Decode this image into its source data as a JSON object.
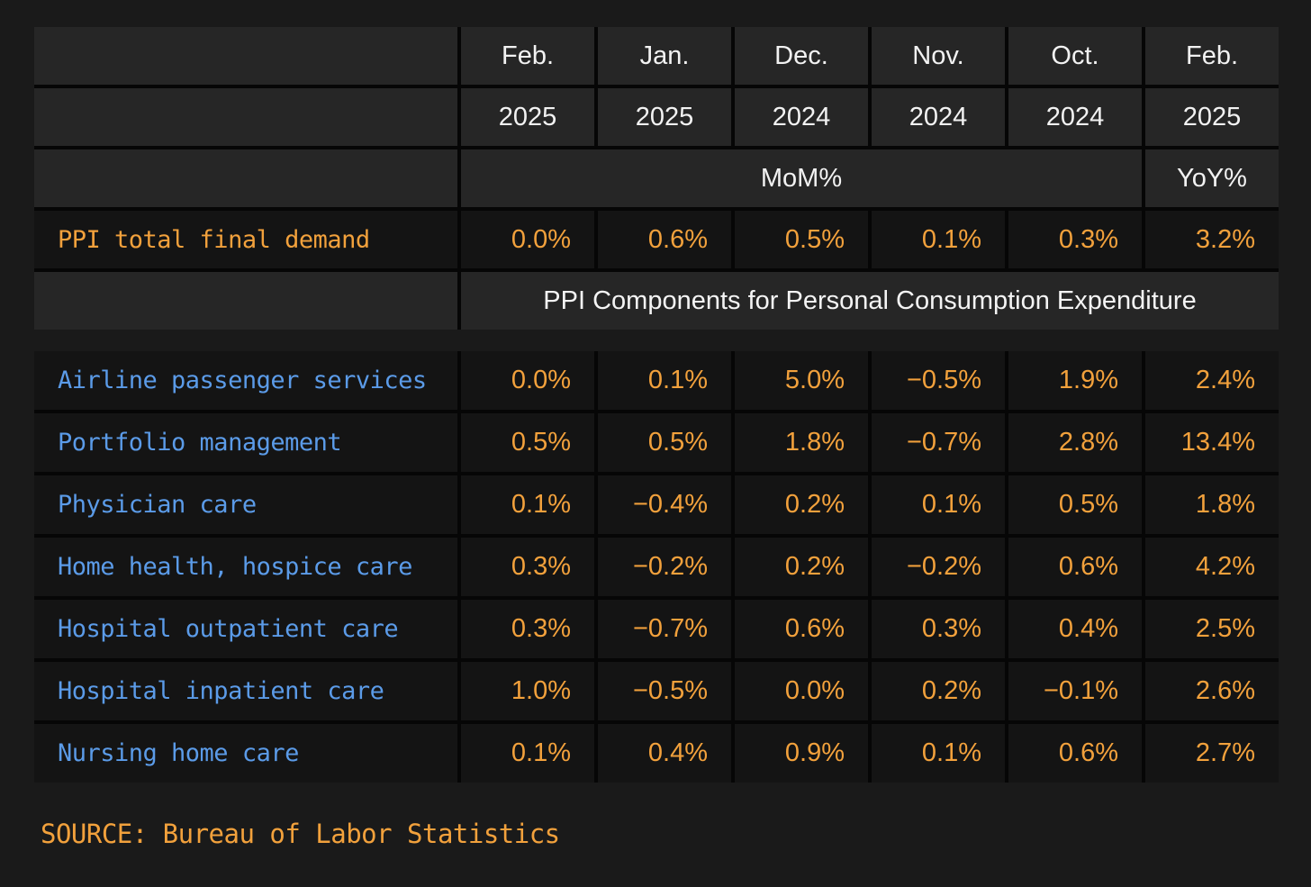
{
  "chart_data": {
    "type": "table",
    "column_headers": [
      {
        "month": "Feb.",
        "year": "2025"
      },
      {
        "month": "Jan.",
        "year": "2025"
      },
      {
        "month": "Dec.",
        "year": "2024"
      },
      {
        "month": "Nov.",
        "year": "2024"
      },
      {
        "month": "Oct.",
        "year": "2024"
      },
      {
        "month": "Feb.",
        "year": "2025"
      }
    ],
    "measure_row": {
      "mom_label": "MoM%",
      "yoy_label": "YoY%"
    },
    "total_row": {
      "label": "PPI total final demand",
      "values": [
        "0.0%",
        "0.6%",
        "0.5%",
        "0.1%",
        "0.3%",
        "3.2%"
      ]
    },
    "section_header": "PPI Components for Personal Consumption Expenditure",
    "rows": [
      {
        "label": "Airline passenger services",
        "values": [
          "0.0%",
          "0.1%",
          "5.0%",
          "−0.5%",
          "1.9%",
          "2.4%"
        ]
      },
      {
        "label": "Portfolio management",
        "values": [
          "0.5%",
          "0.5%",
          "1.8%",
          "−0.7%",
          "2.8%",
          "13.4%"
        ]
      },
      {
        "label": "Physician care",
        "values": [
          "0.1%",
          "−0.4%",
          "0.2%",
          "0.1%",
          "0.5%",
          "1.8%"
        ]
      },
      {
        "label": "Home health, hospice care",
        "values": [
          "0.3%",
          "−0.2%",
          "0.2%",
          "−0.2%",
          "0.6%",
          "4.2%"
        ]
      },
      {
        "label": "Hospital outpatient care",
        "values": [
          "0.3%",
          "−0.7%",
          "0.6%",
          "0.3%",
          "0.4%",
          "2.5%"
        ]
      },
      {
        "label": "Hospital inpatient care",
        "values": [
          "1.0%",
          "−0.5%",
          "0.0%",
          "0.2%",
          "−0.1%",
          "2.6%"
        ]
      },
      {
        "label": "Nursing home care",
        "values": [
          "0.1%",
          "0.4%",
          "0.9%",
          "0.1%",
          "0.6%",
          "2.7%"
        ]
      }
    ],
    "source": "SOURCE: Bureau of Labor Statistics",
    "layout_hints": {
      "grid": "off",
      "negative_sign": "U+2212",
      "value_alignment": "right"
    }
  },
  "colors": {
    "page_background": "#1a1a1a",
    "header_cell_background": "#262626",
    "data_cell_background": "#141414",
    "divider": "#060606",
    "accent_orange": "#f2a13c",
    "accent_blue": "#5b9be8",
    "header_text": "#f2f2f2"
  }
}
